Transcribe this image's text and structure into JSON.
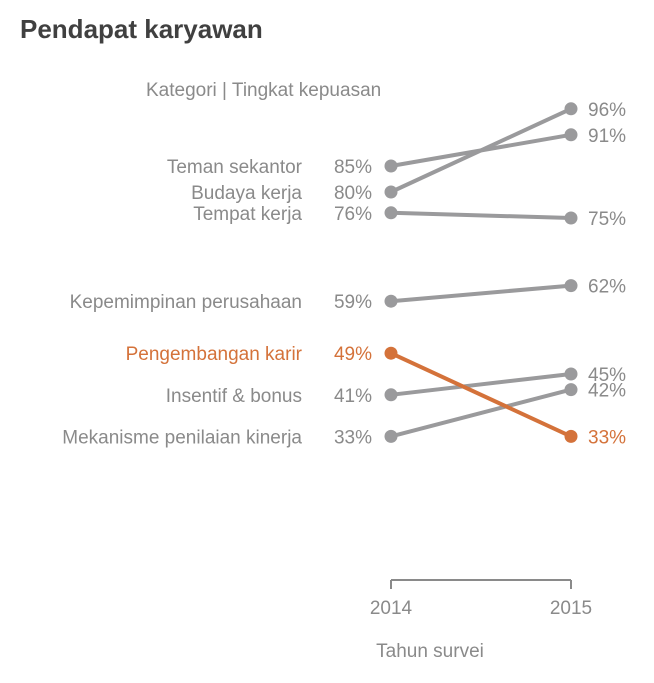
{
  "chart_data": {
    "type": "line",
    "title": "Pendapat karyawan",
    "header": "Kategori | Tingkat kepuasan",
    "xlabel": "Tahun survei",
    "x": [
      "2014",
      "2015"
    ],
    "ylabel": "",
    "ylim": [
      30,
      100
    ],
    "grid": false,
    "series": [
      {
        "name": "Teman sekantor",
        "values": [
          85,
          91
        ],
        "label_start": "85%",
        "label_end": "91%",
        "highlight": false
      },
      {
        "name": "Budaya kerja",
        "values": [
          80,
          96
        ],
        "label_start": "80%",
        "label_end": "96%",
        "highlight": false
      },
      {
        "name": "Tempat kerja",
        "values": [
          76,
          75
        ],
        "label_start": "76%",
        "label_end": "75%",
        "highlight": false
      },
      {
        "name": "Kepemimpinan perusahaan",
        "values": [
          59,
          62
        ],
        "label_start": "59%",
        "label_end": "62%",
        "highlight": false
      },
      {
        "name": "Pengembangan karir",
        "values": [
          49,
          33
        ],
        "label_start": "49%",
        "label_end": "33%",
        "highlight": true
      },
      {
        "name": "Insentif & bonus",
        "values": [
          41,
          45
        ],
        "label_start": "41%",
        "label_end": "45%",
        "highlight": false
      },
      {
        "name": "Mekanisme penilaian kinerja",
        "values": [
          33,
          42
        ],
        "label_start": "33%",
        "label_end": "42%",
        "highlight": false
      }
    ],
    "colors": {
      "default": "#9a9a9c",
      "highlight": "#d4723a",
      "text": "#8a8a8a",
      "axis": "#8a8a8a"
    }
  }
}
